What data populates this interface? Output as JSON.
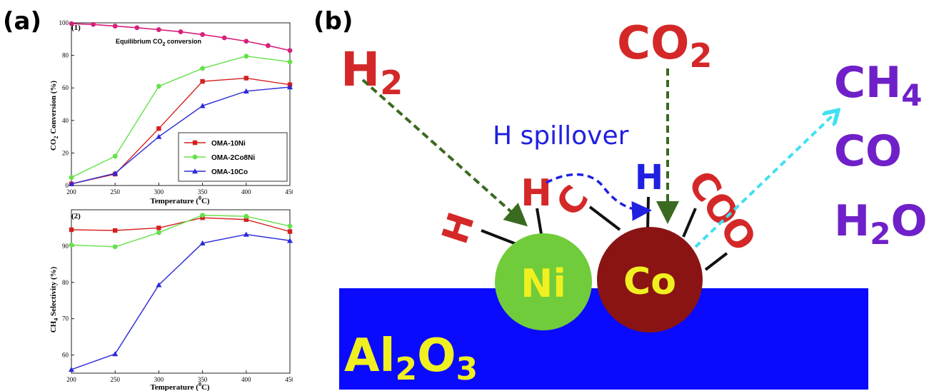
{
  "labels": {
    "panel_a": "(a)",
    "panel_b": "(b)"
  },
  "chart_data": [
    {
      "type": "line",
      "panel": "(1)",
      "annotation": {
        "text": "Equilibrium CO",
        "sub": "2",
        "tail": " conversion"
      },
      "xlabel": {
        "text": "Temperature (",
        "sup": "0",
        "tail": "C)"
      },
      "ylabel": {
        "pre": "CO",
        "sub": "2",
        "post": " Conversion (%)"
      },
      "x": [
        200,
        250,
        300,
        350,
        400,
        450
      ],
      "xlim": [
        200,
        450
      ],
      "ylim": [
        0,
        100
      ],
      "xticks": [
        "200",
        "250",
        "300",
        "350",
        "400",
        "450"
      ],
      "yticks": [
        "0",
        "20",
        "40",
        "60",
        "80",
        "100"
      ],
      "legend": "center-right",
      "series": [
        {
          "name": "OMA-10Ni",
          "color": "#d42020",
          "marker": "square",
          "values": [
            1,
            7,
            35,
            64,
            66,
            62
          ]
        },
        {
          "name": "OMA-2Co8Ni",
          "color": "#66e04a",
          "marker": "circle",
          "values": [
            5,
            18,
            61,
            72,
            79.5,
            76
          ]
        },
        {
          "name": "OMA-10Co",
          "color": "#2a2ad8",
          "marker": "triangle",
          "values": [
            1,
            7.5,
            30,
            49,
            58,
            60.5
          ]
        }
      ],
      "equilibrium": {
        "color": "#d8207a",
        "x": [
          200,
          225,
          250,
          275,
          300,
          325,
          350,
          375,
          400,
          425,
          450
        ],
        "values": [
          99.5,
          99,
          98,
          97,
          95.8,
          94.5,
          92.8,
          90.8,
          88.7,
          86,
          83
        ]
      }
    },
    {
      "type": "line",
      "panel": "(2)",
      "xlabel": {
        "text": "Temperature (",
        "sup": "0",
        "tail": "C)"
      },
      "ylabel": {
        "pre": "CH",
        "sub": "4",
        "post": " Selectivity (%)"
      },
      "x": [
        200,
        250,
        300,
        350,
        400,
        450
      ],
      "xlim": [
        200,
        450
      ],
      "ylim": [
        55,
        100
      ],
      "xticks": [
        "200",
        "250",
        "300",
        "350",
        "400",
        "450"
      ],
      "yticks": [
        "60",
        "70",
        "80",
        "90"
      ],
      "series": [
        {
          "name": "OMA-10Ni",
          "color": "#d42020",
          "marker": "square",
          "values": [
            94.5,
            94.3,
            95,
            97.8,
            97.3,
            94
          ]
        },
        {
          "name": "OMA-2Co8Ni",
          "color": "#66e04a",
          "marker": "circle",
          "values": [
            90.3,
            89.8,
            93.7,
            98.5,
            98.2,
            95.5
          ]
        },
        {
          "name": "OMA-10Co",
          "color": "#2a2ad8",
          "marker": "triangle",
          "values": [
            56,
            60.3,
            79.3,
            90.8,
            93.2,
            91.5
          ]
        }
      ]
    }
  ],
  "diagram": {
    "support": {
      "main": "Al",
      "s1": "2",
      "mid": "O",
      "s2": "3"
    },
    "ni": "Ni",
    "co": "Co",
    "h2": {
      "main": "H",
      "sub": "2"
    },
    "co2": {
      "main": "CO",
      "sub": "2"
    },
    "spillover": "H spillover",
    "h_left": "H",
    "h_mid": "H",
    "c_atom": "C",
    "h_blue": "H",
    "coo": "COO",
    "products": {
      "ch4": {
        "main": "CH",
        "sub": "4"
      },
      "co": "CO",
      "h2o": {
        "main": "H",
        "sub": "2",
        "tail": "O"
      }
    },
    "colors": {
      "red": "#d42828",
      "purple": "#7020c8",
      "blue": "#2020e0",
      "green_arrow": "#3a6a20",
      "cyan": "#40e0f0",
      "support": "#0a0aff",
      "support_text": "#f0f020",
      "ni": "#70cc3a",
      "co": "#8a1414"
    }
  }
}
